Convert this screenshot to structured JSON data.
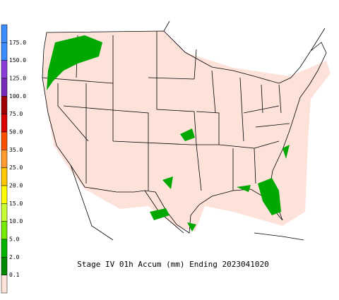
{
  "legend": {
    "labels": [
      "175.0",
      "150.0",
      "125.0",
      "100.0",
      "75.0",
      "50.0",
      "35.0",
      "25.0",
      "20.0",
      "15.0",
      "10.0",
      "5.0",
      "2.0",
      "0.1"
    ],
    "colors": [
      "#3c8cff",
      "#3c8cff",
      "#8a3cd8",
      "#7a2ab8",
      "#a00000",
      "#d80000",
      "#ff5000",
      "#ff9a30",
      "#ffc800",
      "#ffff00",
      "#c8ff32",
      "#78e800",
      "#00b400",
      "#008800",
      "#fde2da"
    ]
  },
  "title": "Stage IV 01h Accum (mm) Ending 2023041020"
}
